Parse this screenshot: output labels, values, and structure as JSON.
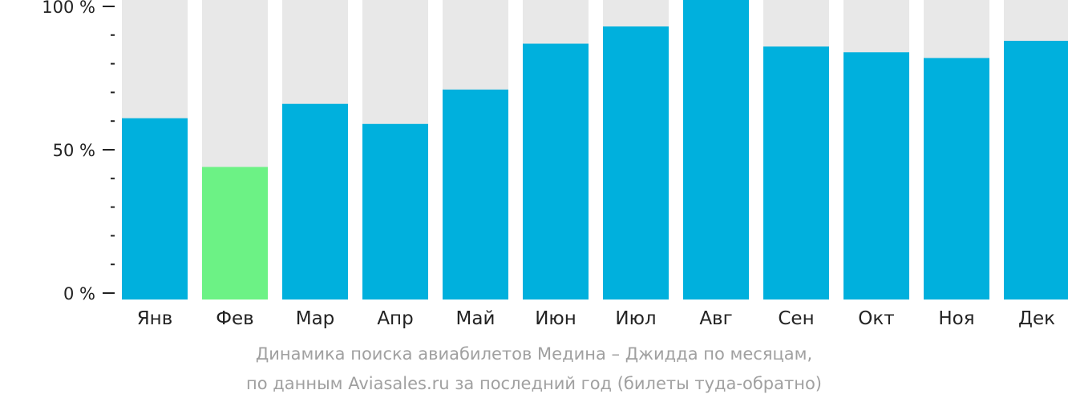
{
  "chart_data": {
    "type": "bar",
    "categories": [
      "Янв",
      "Фев",
      "Мар",
      "Апр",
      "Май",
      "Июн",
      "Июл",
      "Авг",
      "Сен",
      "Окт",
      "Ноя",
      "Дек"
    ],
    "values": [
      61,
      44,
      66,
      59,
      71,
      87,
      93,
      105,
      86,
      84,
      82,
      88
    ],
    "highlight_index": 1,
    "ylim": [
      0,
      100
    ],
    "y_ticks": [
      {
        "value": 0,
        "label": "0 %"
      },
      {
        "value": 50,
        "label": "50 %"
      },
      {
        "value": 100,
        "label": "100 %"
      }
    ],
    "y_minor_step": 10,
    "grid": false,
    "colors": {
      "bar": "#00b0dd",
      "highlight": "#6cf285",
      "background_bar": "#e8e8e8",
      "axis_text": "#222222",
      "caption": "#a0a0a0"
    }
  },
  "caption": {
    "line1": "Динамика поиска авиабилетов Медина – Джидда по месяцам,",
    "line2": "по данным Aviasales.ru за последний год (билеты туда-обратно)"
  }
}
